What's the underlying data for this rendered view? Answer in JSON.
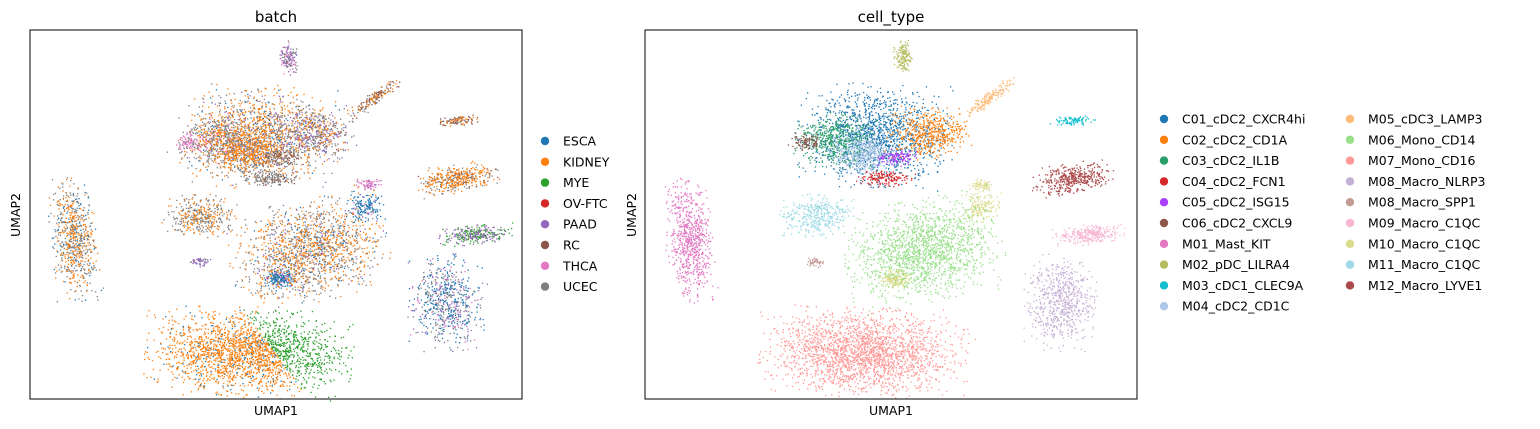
{
  "figure": {
    "xlabel": "UMAP1",
    "ylabel": "UMAP2"
  },
  "chart_data": [
    {
      "type": "scatter",
      "title": "batch",
      "xlabel": "UMAP1",
      "ylabel": "UMAP2",
      "grid": false,
      "ticks": false,
      "legend_placement": "right",
      "legend": [
        "ESCA",
        "KIDNEY",
        "MYE",
        "OV-FTC",
        "PAAD",
        "RC",
        "THCA",
        "UCEC"
      ],
      "colors": [
        "#1f77b4",
        "#ff7f0e",
        "#2ca02c",
        "#d62728",
        "#9467bd",
        "#8c564b",
        "#e377c2",
        "#7f7f7f"
      ]
    },
    {
      "type": "scatter",
      "title": "cell_type",
      "xlabel": "UMAP1",
      "ylabel": "UMAP2",
      "grid": false,
      "ticks": false,
      "legend_placement": "right",
      "legend": [
        "C01_cDC2_CXCR4hi",
        "C02_cDC2_CD1A",
        "C03_cDC2_IL1B",
        "C04_cDC2_FCN1",
        "C05_cDC2_ISG15",
        "C06_cDC2_CXCL9",
        "M01_Mast_KIT",
        "M02_pDC_LILRA4",
        "M03_cDC1_CLEC9A",
        "M04_cDC2_CD1C",
        "M05_cDC3_LAMP3",
        "M06_Mono_CD14",
        "M07_Mono_CD16",
        "M08_Macro_NLRP3",
        "M08_Macro_SPP1",
        "M09_Macro_C1QC",
        "M10_Macro_C1QC",
        "M11_Macro_C1QC",
        "M12_Macro_LYVE1"
      ],
      "colors": [
        "#1f77b4",
        "#ff7f0e",
        "#279e68",
        "#d62728",
        "#aa40fc",
        "#8c564b",
        "#e377c2",
        "#b5bd61",
        "#17becf",
        "#aec7e8",
        "#ffbb78",
        "#98df8a",
        "#ff9896",
        "#c5b0d5",
        "#c49c94",
        "#f7b6d2",
        "#dbdb8d",
        "#9edae5",
        "#ad494a"
      ]
    }
  ]
}
